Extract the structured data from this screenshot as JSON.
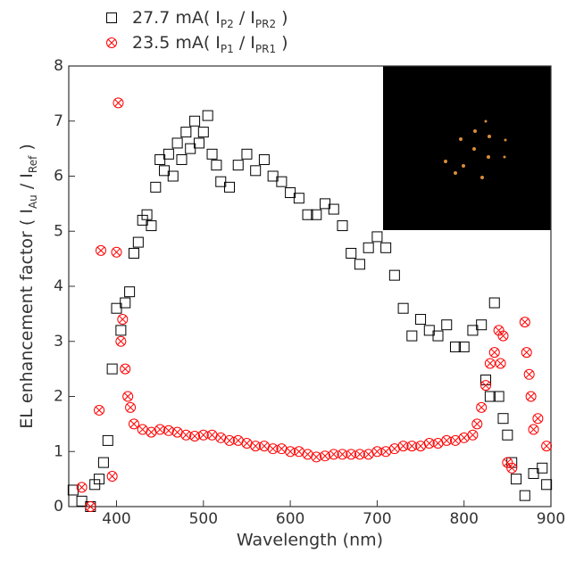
{
  "chart_data": {
    "type": "scatter",
    "x_label": "Wavelength (nm)",
    "y_label_parts": [
      {
        "t": "EL enhancement factor  ( I"
      },
      {
        "sub": "Au"
      },
      {
        "t": " / I"
      },
      {
        "sub": "Ref"
      },
      {
        "t": " )"
      }
    ],
    "xlim": [
      345,
      900
    ],
    "xticks": [
      400,
      500,
      600,
      700,
      800,
      900
    ],
    "ylim": [
      0,
      8
    ],
    "yticks": [
      0,
      1,
      2,
      3,
      4,
      5,
      6,
      7,
      8
    ],
    "series": [
      {
        "name": "27.7 mA",
        "ratio": [
          {
            "t": "( I"
          },
          {
            "sub": "P2"
          },
          {
            "t": " / I"
          },
          {
            "sub": "PR2"
          },
          {
            "t": " )"
          }
        ],
        "color": "#000000",
        "marker": "square",
        "x": [
          350,
          360,
          370,
          375,
          380,
          385,
          390,
          395,
          400,
          405,
          410,
          415,
          420,
          425,
          430,
          435,
          440,
          445,
          450,
          455,
          460,
          465,
          470,
          475,
          480,
          485,
          490,
          495,
          500,
          505,
          510,
          515,
          520,
          530,
          540,
          550,
          560,
          570,
          580,
          590,
          600,
          610,
          620,
          630,
          640,
          650,
          660,
          670,
          680,
          690,
          700,
          710,
          720,
          730,
          740,
          750,
          760,
          770,
          780,
          790,
          800,
          810,
          820,
          825,
          830,
          835,
          840,
          845,
          850,
          855,
          860,
          870,
          880,
          890,
          895
        ],
        "values": [
          0.3,
          0.1,
          0.0,
          0.4,
          0.5,
          0.8,
          1.2,
          2.5,
          3.6,
          3.2,
          3.7,
          3.9,
          4.6,
          4.8,
          5.2,
          5.3,
          5.1,
          5.8,
          6.3,
          6.1,
          6.4,
          6.0,
          6.6,
          6.3,
          6.8,
          6.5,
          7.0,
          6.6,
          6.8,
          7.1,
          6.4,
          6.2,
          5.9,
          5.8,
          6.2,
          6.4,
          6.1,
          6.3,
          6.0,
          5.9,
          5.7,
          5.6,
          5.3,
          5.3,
          5.5,
          5.4,
          5.1,
          4.6,
          4.4,
          4.7,
          4.9,
          4.7,
          4.2,
          3.6,
          3.1,
          3.4,
          3.2,
          3.1,
          3.3,
          2.9,
          2.9,
          3.2,
          3.3,
          2.3,
          2.0,
          3.7,
          2.0,
          1.6,
          1.3,
          0.8,
          0.5,
          0.2,
          0.6,
          0.7,
          0.4
        ]
      },
      {
        "name": "23.5 mA",
        "ratio": [
          {
            "t": "( I"
          },
          {
            "sub": "P1"
          },
          {
            "t": " / I"
          },
          {
            "sub": "PR1"
          },
          {
            "t": " )"
          }
        ],
        "color": "#ff0000",
        "marker": "circle-x",
        "x": [
          360,
          370,
          380,
          382,
          395,
          400,
          402,
          405,
          407,
          410,
          413,
          416,
          420,
          430,
          440,
          450,
          460,
          470,
          480,
          490,
          500,
          510,
          520,
          530,
          540,
          550,
          560,
          570,
          580,
          590,
          600,
          610,
          620,
          630,
          640,
          650,
          660,
          670,
          680,
          690,
          700,
          710,
          720,
          730,
          740,
          750,
          760,
          770,
          780,
          790,
          800,
          810,
          815,
          820,
          825,
          830,
          835,
          840,
          842,
          845,
          850,
          855,
          870,
          872,
          875,
          877,
          880,
          885,
          895
        ],
        "values": [
          0.35,
          0.0,
          1.75,
          4.65,
          0.55,
          4.62,
          7.33,
          3.0,
          3.4,
          2.5,
          2.0,
          1.8,
          1.5,
          1.4,
          1.35,
          1.4,
          1.38,
          1.35,
          1.3,
          1.28,
          1.3,
          1.3,
          1.25,
          1.2,
          1.2,
          1.15,
          1.1,
          1.1,
          1.05,
          1.05,
          1.0,
          1.0,
          0.95,
          0.9,
          0.92,
          0.95,
          0.95,
          0.95,
          0.95,
          0.95,
          1.0,
          1.0,
          1.05,
          1.1,
          1.1,
          1.1,
          1.15,
          1.15,
          1.2,
          1.2,
          1.25,
          1.3,
          1.5,
          1.8,
          2.2,
          2.6,
          2.8,
          3.2,
          2.6,
          3.1,
          0.8,
          0.7,
          3.35,
          2.8,
          2.4,
          2.0,
          1.4,
          1.6,
          1.1
        ]
      }
    ]
  }
}
